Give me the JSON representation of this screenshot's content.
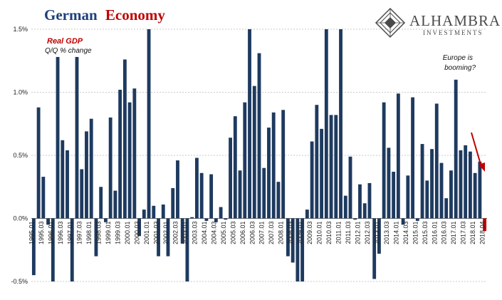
{
  "title": {
    "part1": "German",
    "part2": "Economy"
  },
  "logo": {
    "name": "ALHAMBRA",
    "sub": "INVESTMENTS"
  },
  "annotations": {
    "series_label": "Real GDP",
    "series_sub": "Q/Q % change",
    "note_line1": "Europe is",
    "note_line2": "booming?"
  },
  "colors": {
    "bar": "#1e3a5f",
    "last_bar": "#c00000",
    "title_blue": "#1f3f7a",
    "title_red": "#c00000",
    "accent_red": "#c00000"
  },
  "chart_data": {
    "type": "bar",
    "title": "German Economy",
    "xlabel": "",
    "ylabel": "",
    "ylim": [
      -0.5,
      1.5
    ],
    "grid": true,
    "yticks": [
      "-0.5%",
      "0.0%",
      "0.5%",
      "1.0%",
      "1.5%"
    ],
    "x_tick_labels": [
      "1995.01",
      "1995.03",
      "1996.01",
      "1996.03",
      "1997.01",
      "1997.03",
      "1998.01",
      "1998.03",
      "1999.01",
      "1999.03",
      "2000.01",
      "2000.03",
      "2001.01",
      "2001.03",
      "2002.01",
      "2002.03",
      "2003.01",
      "2003.03",
      "2004.01",
      "2004.03",
      "2005.01",
      "2005.03",
      "2006.01",
      "2006.03",
      "2007.01",
      "2007.03",
      "2008.01",
      "2008.03",
      "2009.01",
      "2009.03",
      "2010.01",
      "2010.03",
      "2011.01",
      "2011.03",
      "2012.01",
      "2012.03",
      "2013.01",
      "2013.03",
      "2014.01",
      "2014.03",
      "2015.01",
      "2015.03",
      "2016.01",
      "2016.03",
      "2017.01",
      "2017.03",
      "2018.01",
      "2018.03"
    ],
    "last_label": "2018.04",
    "values": [
      -0.45,
      0.88,
      0.33,
      -0.05,
      -0.5,
      1.28,
      0.62,
      0.54,
      -0.5,
      1.28,
      0.39,
      0.69,
      0.79,
      -0.3,
      0.25,
      -0.03,
      0.8,
      0.22,
      1.02,
      1.26,
      0.92,
      1.03,
      -0.14,
      0.07,
      1.5,
      0.1,
      -0.3,
      0.11,
      -0.3,
      0.24,
      0.46,
      -0.2,
      -0.5,
      0.01,
      0.48,
      0.36,
      -0.02,
      0.35,
      -0.03,
      0.09,
      -0.01,
      0.64,
      0.81,
      0.38,
      0.92,
      1.5,
      1.05,
      1.31,
      0.4,
      0.72,
      0.84,
      0.29,
      0.86,
      -0.3,
      -0.35,
      -0.5,
      -0.5,
      0.07,
      0.61,
      0.9,
      0.71,
      1.5,
      0.82,
      0.82,
      1.5,
      0.18,
      0.49,
      -0.01,
      0.27,
      0.12,
      0.28,
      -0.48,
      -0.28,
      0.92,
      0.56,
      0.37,
      0.99,
      -0.05,
      0.34,
      0.96,
      -0.02,
      0.59,
      0.3,
      0.55,
      0.91,
      0.44,
      0.16,
      0.38,
      1.1,
      0.54,
      0.58,
      0.53,
      0.36,
      0.45,
      -0.1
    ]
  }
}
